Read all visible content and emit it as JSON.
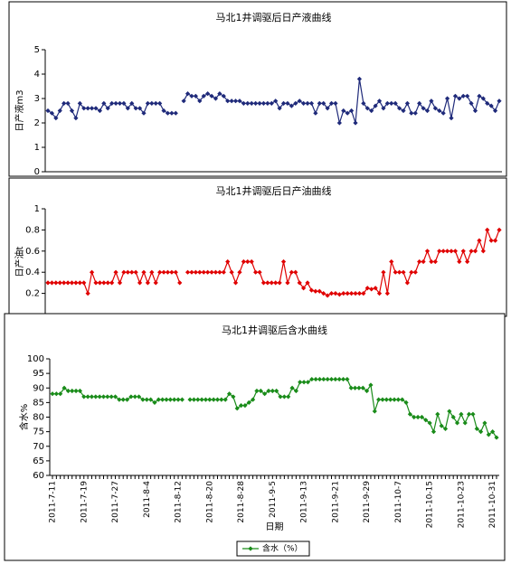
{
  "chart_data": [
    {
      "type": "line",
      "title": "马北1井调驱后日产液曲线",
      "y_label": "日产液m3",
      "color": "#1f2a7a",
      "marker": "diamond",
      "ylim": [
        0,
        5
      ],
      "yticks": [
        0,
        1,
        2,
        3,
        4,
        5
      ],
      "values": [
        2.5,
        2.4,
        2.2,
        2.5,
        2.8,
        2.8,
        2.5,
        2.2,
        2.8,
        2.6,
        2.6,
        2.6,
        2.6,
        2.5,
        2.8,
        2.6,
        2.8,
        2.8,
        2.8,
        2.8,
        2.6,
        2.8,
        2.6,
        2.6,
        2.4,
        2.8,
        2.8,
        2.8,
        2.8,
        2.5,
        2.4,
        2.4,
        2.4,
        null,
        2.9,
        3.2,
        3.1,
        3.1,
        2.9,
        3.1,
        3.2,
        3.1,
        3.0,
        3.2,
        3.1,
        2.9,
        2.9,
        2.9,
        2.9,
        2.8,
        2.8,
        2.8,
        2.8,
        2.8,
        2.8,
        2.8,
        2.8,
        2.9,
        2.6,
        2.8,
        2.8,
        2.7,
        2.8,
        2.9,
        2.8,
        2.8,
        2.8,
        2.4,
        2.8,
        2.8,
        2.6,
        2.8,
        2.8,
        2.0,
        2.5,
        2.4,
        2.5,
        2.0,
        3.8,
        2.8,
        2.6,
        2.5,
        2.7,
        2.9,
        2.6,
        2.8,
        2.8,
        2.8,
        2.6,
        2.5,
        2.8,
        2.4,
        2.4,
        2.8,
        2.6,
        2.5,
        2.9,
        2.6,
        2.5,
        2.4,
        3.0,
        2.2,
        3.1,
        3.0,
        3.1,
        3.1,
        2.8,
        2.5,
        3.1,
        3.0,
        2.8,
        2.7,
        2.5,
        2.9
      ]
    },
    {
      "type": "line",
      "title": "马北1井调驱后日产油曲线",
      "y_label": "日产油t",
      "color": "#e00000",
      "marker": "diamond",
      "ylim": [
        0,
        1
      ],
      "yticks": [
        0.2,
        0.4,
        0.6,
        0.8,
        1
      ],
      "values": [
        0.3,
        0.3,
        0.3,
        0.3,
        0.3,
        0.3,
        0.3,
        0.3,
        0.3,
        0.3,
        0.2,
        0.4,
        0.3,
        0.3,
        0.3,
        0.3,
        0.3,
        0.4,
        0.3,
        0.4,
        0.4,
        0.4,
        0.4,
        0.3,
        0.4,
        0.3,
        0.4,
        0.3,
        0.4,
        0.4,
        0.4,
        0.4,
        0.4,
        0.3,
        null,
        0.4,
        0.4,
        0.4,
        0.4,
        0.4,
        0.4,
        0.4,
        0.4,
        0.4,
        0.4,
        0.5,
        0.4,
        0.3,
        0.4,
        0.5,
        0.5,
        0.5,
        0.4,
        0.4,
        0.3,
        0.3,
        0.3,
        0.3,
        0.3,
        0.5,
        0.3,
        0.4,
        0.4,
        0.3,
        0.25,
        0.3,
        0.23,
        0.22,
        0.22,
        0.2,
        0.18,
        0.2,
        0.2,
        0.19,
        0.2,
        0.2,
        0.2,
        0.2,
        0.2,
        0.2,
        0.25,
        0.24,
        0.25,
        0.2,
        0.4,
        0.2,
        0.5,
        0.4,
        0.4,
        0.4,
        0.3,
        0.4,
        0.4,
        0.5,
        0.5,
        0.6,
        0.5,
        0.5,
        0.6,
        0.6,
        0.6,
        0.6,
        0.6,
        0.5,
        0.6,
        0.5,
        0.6,
        0.6,
        0.7,
        0.6,
        0.8,
        0.7,
        0.7,
        0.8
      ]
    },
    {
      "type": "line",
      "title": "马北1井调驱后含水曲线",
      "y_label": "含水%",
      "x_label": "日期",
      "marker": "diamond",
      "ylim": [
        60,
        100
      ],
      "yticks": [
        60,
        65,
        70,
        75,
        80,
        85,
        90,
        95,
        100
      ],
      "categories": [
        "2011-7-11",
        null,
        null,
        null,
        null,
        null,
        null,
        null,
        "2011-7-19",
        null,
        null,
        null,
        null,
        null,
        null,
        null,
        "2011-7-27",
        null,
        null,
        null,
        null,
        null,
        null,
        null,
        "2011-8-4",
        null,
        null,
        null,
        null,
        null,
        null,
        null,
        "2011-8-12",
        null,
        null,
        null,
        null,
        null,
        null,
        null,
        "2011-8-20",
        null,
        null,
        null,
        null,
        null,
        null,
        null,
        "2011-8-28",
        null,
        null,
        null,
        null,
        null,
        null,
        null,
        "2011-9-5",
        null,
        null,
        null,
        null,
        null,
        null,
        null,
        "2011-9-13",
        null,
        null,
        null,
        null,
        null,
        null,
        null,
        "2011-9-21",
        null,
        null,
        null,
        null,
        null,
        null,
        null,
        "2011-9-29",
        null,
        null,
        null,
        null,
        null,
        null,
        null,
        "2011-10-7",
        null,
        null,
        null,
        null,
        null,
        null,
        null,
        "2011-10-15",
        null,
        null,
        null,
        null,
        null,
        null,
        null,
        "2011-10-23",
        null,
        null,
        null,
        null,
        null,
        null,
        null,
        "2011-10-31",
        null
      ],
      "series": [
        {
          "name": "含水（%）",
          "color": "#1a8c1a",
          "values": [
            88,
            88,
            88,
            90,
            89,
            89,
            89,
            89,
            87,
            87,
            87,
            87,
            87,
            87,
            87,
            87,
            87,
            86,
            86,
            86,
            87,
            87,
            87,
            86,
            86,
            86,
            85,
            86,
            86,
            86,
            86,
            86,
            86,
            86,
            null,
            86,
            86,
            86,
            86,
            86,
            86,
            86,
            86,
            86,
            86,
            88,
            87,
            83,
            84,
            84,
            85,
            86,
            89,
            89,
            88,
            89,
            89,
            89,
            87,
            87,
            87,
            90,
            89,
            92,
            92,
            92,
            93,
            93,
            93,
            93,
            93,
            93,
            93,
            93,
            93,
            93,
            90,
            90,
            90,
            90,
            89,
            91,
            82,
            86,
            86,
            86,
            86,
            86,
            86,
            86,
            85,
            81,
            80,
            80,
            80,
            79,
            78,
            75,
            81,
            77,
            76,
            82,
            80,
            78,
            81,
            78,
            81,
            81,
            76,
            75,
            78,
            74,
            75,
            73
          ]
        }
      ],
      "legend": "bottom"
    }
  ]
}
